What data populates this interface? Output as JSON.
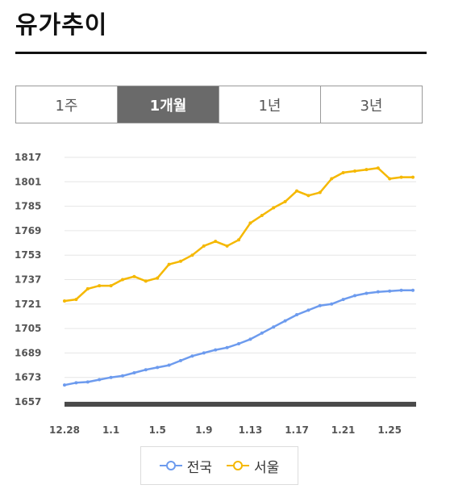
{
  "title": "유가추이",
  "tabs": [
    {
      "label": "1주",
      "active": false
    },
    {
      "label": "1개월",
      "active": true
    },
    {
      "label": "1년",
      "active": false
    },
    {
      "label": "3년",
      "active": false
    }
  ],
  "chart_data": {
    "type": "line",
    "ylim": [
      1657,
      1817
    ],
    "y_ticks": [
      "1817",
      "1801",
      "1785",
      "1769",
      "1753",
      "1737",
      "1721",
      "1705",
      "1689",
      "1673",
      "1657"
    ],
    "x_tick_labels": [
      "12.28",
      "1.1",
      "1.5",
      "1.9",
      "1.13",
      "1.17",
      "1.21",
      "1.25"
    ],
    "grid": true,
    "legend_position": "bottom",
    "series": [
      {
        "name": "전국",
        "color": "#6d9bee",
        "values": [
          1668,
          1669.5,
          1670,
          1671.5,
          1673,
          1674,
          1676,
          1678,
          1679.5,
          1681,
          1684,
          1687,
          1689,
          1691,
          1692.5,
          1695,
          1698,
          1702,
          1706,
          1710,
          1714,
          1717,
          1720,
          1721,
          1724,
          1726.5,
          1728,
          1729,
          1729.5,
          1730,
          1730
        ]
      },
      {
        "name": "서울",
        "color": "#f5b800",
        "values": [
          1723,
          1724,
          1731,
          1733,
          1733,
          1737,
          1739,
          1736,
          1738,
          1747,
          1749,
          1753,
          1759,
          1762,
          1759,
          1763,
          1774,
          1779,
          1784,
          1788,
          1795,
          1792,
          1794,
          1803,
          1807,
          1808,
          1809,
          1810,
          1803,
          1804,
          1804
        ]
      }
    ]
  }
}
